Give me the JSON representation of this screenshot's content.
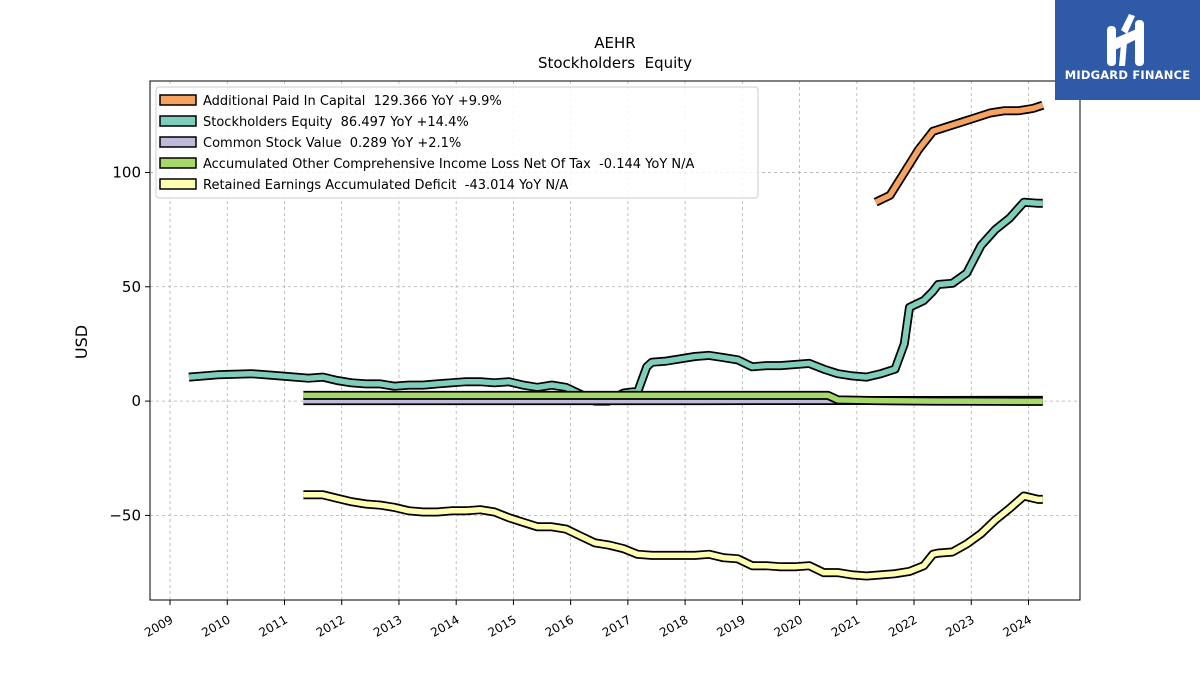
{
  "brand": {
    "name": "MIDGARD FINANCE",
    "bg_color": "#2f5aa7"
  },
  "chart_data": {
    "type": "line",
    "title": "AEHR",
    "subtitle": "Stockholders  Equity",
    "xlabel": "",
    "ylabel": "USD",
    "xlim": [
      2008.65,
      2024.9
    ],
    "ylim": [
      -87,
      140
    ],
    "x_ticks": [
      "2009",
      "2010",
      "2011",
      "2012",
      "2013",
      "2014",
      "2015",
      "2016",
      "2017",
      "2018",
      "2019",
      "2020",
      "2021",
      "2022",
      "2023",
      "2024"
    ],
    "y_ticks": [
      100,
      50,
      0,
      -50
    ],
    "y_tick_labels": [
      "100",
      "50",
      "0",
      "−50"
    ],
    "grid": true,
    "legend_position": "top-left",
    "series": [
      {
        "name": "Additional Paid In Capital  129.366 YoY +9.9%",
        "color": "#f4a460",
        "x": [
          2021.33,
          2021.58,
          2021.83,
          2022.08,
          2022.33,
          2022.58,
          2022.83,
          2023.08,
          2023.33,
          2023.58,
          2023.83,
          2024.08,
          2024.25
        ],
        "y": [
          87,
          90,
          100,
          110,
          118,
          120,
          122,
          124,
          126,
          127,
          127,
          128,
          129.4
        ]
      },
      {
        "name": "Stockholders Equity  86.497 YoY +14.4%",
        "color": "#7fcdbb",
        "x": [
          2009.33,
          2009.83,
          2010.42,
          2010.92,
          2011.42,
          2011.67,
          2011.92,
          2012.17,
          2012.42,
          2012.67,
          2012.92,
          2013.17,
          2013.42,
          2013.67,
          2013.92,
          2014.17,
          2014.42,
          2014.67,
          2014.92,
          2015.17,
          2015.42,
          2015.67,
          2015.92,
          2016.17,
          2016.42,
          2016.67,
          2016.92,
          2017.08,
          2017.17,
          2017.33,
          2017.42,
          2017.67,
          2017.92,
          2018.17,
          2018.42,
          2018.67,
          2018.92,
          2019.17,
          2019.42,
          2019.67,
          2019.92,
          2020.17,
          2020.42,
          2020.67,
          2020.92,
          2021.17,
          2021.42,
          2021.67,
          2021.83,
          2021.92,
          2022.17,
          2022.33,
          2022.42,
          2022.67,
          2022.92,
          2023.17,
          2023.42,
          2023.67,
          2023.92,
          2024.17,
          2024.25
        ],
        "y": [
          10.5,
          11.5,
          12,
          11,
          10,
          10.5,
          9,
          8,
          7.5,
          7.5,
          6.5,
          7,
          7,
          7.5,
          8,
          8.5,
          8.5,
          8,
          8.5,
          7,
          6,
          7,
          6,
          3,
          0,
          0,
          3.5,
          4,
          4,
          15,
          17,
          17.5,
          18.5,
          19.5,
          20,
          19,
          18,
          15,
          15.5,
          15.5,
          16,
          16.5,
          14,
          12,
          11,
          10.5,
          12,
          14,
          25,
          41,
          44,
          48,
          51,
          51.5,
          56,
          68,
          75,
          80,
          87,
          86.5,
          86.5
        ]
      },
      {
        "name": "Common Stock Value  0.289 YoY +2.1%",
        "color": "#bebada",
        "x": [
          2011.33,
          2012.33,
          2013.33,
          2014.33,
          2015.33,
          2016.33,
          2017.33,
          2018.33,
          2019.33,
          2020.33,
          2021.33,
          2022.33,
          2023.33,
          2024.25
        ],
        "y": [
          0.2,
          0.2,
          0.2,
          0.2,
          0.2,
          0.2,
          0.22,
          0.23,
          0.24,
          0.25,
          0.26,
          0.27,
          0.28,
          0.29
        ]
      },
      {
        "name": "Accumulated Other Comprehensive Income Loss Net Of Tax  -0.144 YoY N/A",
        "color": "#a6d96a",
        "x": [
          2011.33,
          2012.33,
          2013.33,
          2014.33,
          2015.33,
          2016.33,
          2017.33,
          2018.33,
          2019.33,
          2020.33,
          2020.5,
          2020.67,
          2021.33,
          2022.33,
          2023.33,
          2024.25
        ],
        "y": [
          2.5,
          2.5,
          2.5,
          2.5,
          2.5,
          2.5,
          2.5,
          2.5,
          2.5,
          2.5,
          2.5,
          0.5,
          0.2,
          0,
          -0.1,
          -0.144
        ]
      },
      {
        "name": "Retained Earnings Accumulated Deficit  -43.014 YoY N/A",
        "color": "#ffffb3",
        "x": [
          2011.33,
          2011.67,
          2011.92,
          2012.17,
          2012.42,
          2012.67,
          2012.92,
          2013.17,
          2013.42,
          2013.67,
          2013.92,
          2014.17,
          2014.42,
          2014.67,
          2014.92,
          2015.17,
          2015.42,
          2015.67,
          2015.92,
          2016.17,
          2016.42,
          2016.67,
          2016.92,
          2017.17,
          2017.42,
          2017.67,
          2017.92,
          2018.17,
          2018.42,
          2018.67,
          2018.92,
          2019.17,
          2019.42,
          2019.67,
          2019.92,
          2020.17,
          2020.42,
          2020.67,
          2020.92,
          2021.17,
          2021.42,
          2021.67,
          2021.92,
          2022.17,
          2022.33,
          2022.42,
          2022.67,
          2022.92,
          2023.17,
          2023.42,
          2023.67,
          2023.92,
          2024.17,
          2024.25
        ],
        "y": [
          -41,
          -41,
          -42.5,
          -44,
          -45,
          -45.5,
          -46.5,
          -48,
          -48.5,
          -48.5,
          -48,
          -48,
          -47.5,
          -48.5,
          -51,
          -53,
          -55,
          -55,
          -56,
          -59,
          -62,
          -63,
          -64.5,
          -67,
          -67.5,
          -67.5,
          -67.5,
          -67.5,
          -67,
          -68.5,
          -69,
          -72,
          -72,
          -72.5,
          -72.5,
          -72,
          -75,
          -75,
          -76,
          -76.5,
          -76,
          -75.5,
          -74.5,
          -72,
          -67,
          -66.5,
          -66,
          -62.5,
          -58,
          -52,
          -47,
          -41.5,
          -43,
          -43
        ]
      }
    ]
  }
}
